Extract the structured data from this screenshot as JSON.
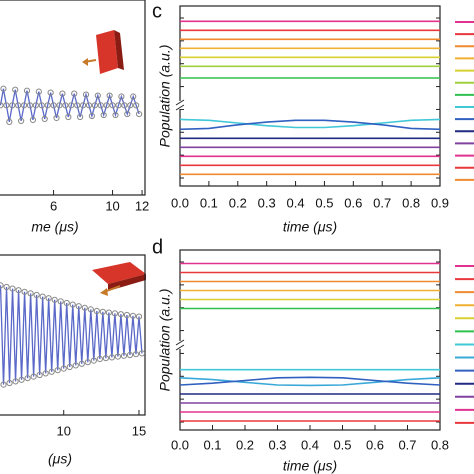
{
  "chart_data": [
    {
      "type": "scatter-line",
      "color": "#5a68c8",
      "marker_color": "#888888",
      "xlabel": "me (μs)",
      "xlim": [
        2.3,
        12.2
      ],
      "ylim": [
        -0.92,
        1.08
      ],
      "xticks": [
        6,
        10,
        12
      ],
      "x": [
        2.4,
        2.6,
        2.8,
        3.0,
        3.2,
        3.4,
        3.6,
        3.8,
        4.0,
        4.2,
        4.4,
        4.6,
        4.8,
        5.0,
        5.2,
        5.4,
        5.6,
        5.8,
        6.0,
        6.2,
        6.4,
        6.6,
        6.8,
        7.0,
        7.2,
        7.4,
        7.6,
        7.8,
        8.0,
        8.2,
        8.4,
        8.6,
        8.8,
        9.0,
        9.2,
        9.4,
        9.6,
        9.8,
        10.0,
        10.2,
        10.4,
        10.6,
        10.8,
        11.0,
        11.2,
        11.4,
        11.6,
        11.8
      ],
      "values": [
        0,
        0.17,
        0,
        -0.17,
        0,
        0.16,
        0,
        -0.16,
        0,
        0.15,
        0,
        -0.15,
        0,
        0.14,
        0,
        -0.14,
        0,
        0.13,
        0,
        -0.13,
        0,
        0.12,
        0,
        -0.12,
        0,
        0.12,
        0,
        -0.12,
        0,
        0.11,
        0,
        -0.11,
        0,
        0.1,
        0,
        -0.1,
        0,
        0.1,
        0,
        -0.1,
        0,
        0.09,
        0,
        -0.09,
        0,
        0.09,
        0,
        -0.09
      ]
    },
    {
      "type": "scatter-line",
      "color": "#5a68c8",
      "marker_color": "#888888",
      "xlabel": "(μs)",
      "xlim": [
        5.7,
        15.4
      ],
      "ylim": [
        -1,
        1
      ],
      "xticks": [
        10,
        15
      ],
      "x": [
        5.8,
        6.0,
        6.2,
        6.4,
        6.6,
        6.8,
        7.0,
        7.2,
        7.4,
        7.6,
        7.8,
        8.0,
        8.2,
        8.4,
        8.6,
        8.8,
        9.0,
        9.2,
        9.4,
        9.6,
        9.8,
        10.0,
        10.2,
        10.4,
        10.6,
        10.8,
        11.0,
        11.2,
        11.4,
        11.6,
        11.8,
        12.0,
        12.2,
        12.4,
        12.6,
        12.8,
        13.0,
        13.2,
        13.4,
        13.6,
        13.8,
        14.0,
        14.2,
        14.4,
        14.6,
        14.8,
        15.0,
        15.2
      ],
      "values": [
        0.62,
        -0.62,
        0.6,
        -0.6,
        0.58,
        -0.58,
        0.56,
        -0.56,
        0.54,
        -0.54,
        0.52,
        -0.52,
        0.5,
        -0.5,
        0.48,
        -0.48,
        0.46,
        -0.46,
        0.44,
        -0.44,
        0.42,
        -0.42,
        0.4,
        -0.4,
        0.38,
        -0.38,
        0.36,
        -0.36,
        0.34,
        -0.34,
        0.32,
        -0.32,
        0.3,
        -0.3,
        0.29,
        -0.29,
        0.28,
        -0.28,
        0.27,
        -0.27,
        0.26,
        -0.26,
        0.25,
        -0.25,
        0.24,
        -0.24,
        0.23,
        -0.23
      ]
    },
    {
      "type": "line",
      "panel_label": "c",
      "xlabel": "time (μs)",
      "ylabel": "Population (a.u.)",
      "xlim": [
        0,
        0.9
      ],
      "ylim": [
        0,
        20
      ],
      "xticks": [
        {
          "value": 0,
          "label": "0.0"
        },
        0.1,
        0.2,
        0.3,
        0.4,
        0.5,
        0.6,
        0.7,
        0.8,
        0.9
      ],
      "x": [
        0,
        0.1,
        0.2,
        0.3,
        0.4,
        0.5,
        0.6,
        0.7,
        0.8,
        0.9
      ],
      "series": [
        {
          "color": "#e0338f",
          "values": [
            18.3,
            18.3,
            18.3,
            18.3,
            18.3,
            18.3,
            18.3,
            18.3,
            18.3,
            18.3
          ]
        },
        {
          "color": "#e8383d",
          "values": [
            17.3,
            17.3,
            17.3,
            17.3,
            17.3,
            17.3,
            17.3,
            17.3,
            17.3,
            17.3
          ]
        },
        {
          "color": "#f08a2e",
          "values": [
            16.3,
            16.3,
            16.3,
            16.3,
            16.3,
            16.3,
            16.3,
            16.3,
            16.3,
            16.3
          ]
        },
        {
          "color": "#f0b030",
          "values": [
            15.3,
            15.3,
            15.3,
            15.3,
            15.3,
            15.3,
            15.3,
            15.3,
            15.3,
            15.3
          ]
        },
        {
          "color": "#d8d030",
          "values": [
            14.3,
            14.3,
            14.3,
            14.3,
            14.3,
            14.3,
            14.3,
            14.3,
            14.3,
            14.3
          ]
        },
        {
          "color": "#a0d040",
          "values": [
            13.3,
            13.3,
            13.3,
            13.3,
            13.3,
            13.3,
            13.3,
            13.3,
            13.3,
            13.3
          ]
        },
        {
          "color": "#30c050",
          "values": [
            12.0,
            12.0,
            12.0,
            12.0,
            12.0,
            12.0,
            12.0,
            12.0,
            12.0,
            12.0
          ]
        },
        {
          "color": "#40c8d8",
          "values": [
            7.4,
            7.3,
            7.0,
            6.7,
            6.5,
            6.5,
            6.7,
            7.0,
            7.3,
            7.4
          ]
        },
        {
          "color": "#3060c0",
          "values": [
            6.3,
            6.4,
            6.8,
            7.1,
            7.3,
            7.3,
            7.1,
            6.8,
            6.4,
            6.3
          ]
        },
        {
          "color": "#202a80",
          "values": [
            5.3,
            5.3,
            5.3,
            5.3,
            5.3,
            5.3,
            5.3,
            5.3,
            5.3,
            5.3
          ]
        },
        {
          "color": "#8040a0",
          "values": [
            4.3,
            4.3,
            4.3,
            4.3,
            4.3,
            4.3,
            4.3,
            4.3,
            4.3,
            4.3
          ]
        },
        {
          "color": "#e0338f",
          "values": [
            3.3,
            3.3,
            3.3,
            3.3,
            3.3,
            3.3,
            3.3,
            3.3,
            3.3,
            3.3
          ]
        },
        {
          "color": "#e8383d",
          "values": [
            2.3,
            2.3,
            2.3,
            2.3,
            2.3,
            2.3,
            2.3,
            2.3,
            2.3,
            2.3
          ]
        },
        {
          "color": "#f08a2e",
          "values": [
            1.3,
            1.3,
            1.3,
            1.3,
            1.3,
            1.3,
            1.3,
            1.3,
            1.3,
            1.3
          ]
        }
      ]
    },
    {
      "type": "line",
      "panel_label": "d",
      "xlabel": "time (μs)",
      "ylabel": "Population (a.u.)",
      "xlim": [
        0,
        0.8
      ],
      "ylim": [
        0,
        20
      ],
      "xticks": [
        {
          "value": 0,
          "label": "0.0"
        },
        0.1,
        0.2,
        0.3,
        0.4,
        0.5,
        0.6,
        0.7,
        0.8
      ],
      "x": [
        0,
        0.1,
        0.2,
        0.3,
        0.4,
        0.5,
        0.6,
        0.7,
        0.8
      ],
      "series": [
        {
          "color": "#e0338f",
          "values": [
            18.5,
            18.5,
            18.5,
            18.5,
            18.5,
            18.5,
            18.5,
            18.5,
            18.5
          ]
        },
        {
          "color": "#e8383d",
          "values": [
            17.5,
            17.5,
            17.5,
            17.5,
            17.5,
            17.5,
            17.5,
            17.5,
            17.5
          ]
        },
        {
          "color": "#f08a2e",
          "values": [
            16.5,
            16.5,
            16.5,
            16.5,
            16.5,
            16.5,
            16.5,
            16.5,
            16.5
          ]
        },
        {
          "color": "#f0b030",
          "values": [
            15.5,
            15.5,
            15.5,
            15.5,
            15.5,
            15.5,
            15.5,
            15.5,
            15.5
          ]
        },
        {
          "color": "#d8d030",
          "values": [
            14.5,
            14.5,
            14.5,
            14.5,
            14.5,
            14.5,
            14.5,
            14.5,
            14.5
          ]
        },
        {
          "color": "#30c050",
          "values": [
            13.5,
            13.5,
            13.5,
            13.5,
            13.5,
            13.5,
            13.5,
            13.5,
            13.5
          ]
        },
        {
          "color": "#40c8d8",
          "values": [
            6.7,
            6.7,
            6.7,
            6.7,
            6.7,
            6.7,
            6.7,
            6.7,
            6.7
          ]
        },
        {
          "color": "#3aa8d8",
          "values": [
            5.8,
            5.6,
            5.3,
            5.0,
            4.95,
            5.0,
            5.3,
            5.6,
            5.8
          ]
        },
        {
          "color": "#3060c0",
          "values": [
            5.0,
            5.2,
            5.5,
            5.8,
            5.85,
            5.8,
            5.5,
            5.2,
            5.0
          ]
        },
        {
          "color": "#202a80",
          "values": [
            4.0,
            4.0,
            4.0,
            4.0,
            4.0,
            4.0,
            4.0,
            4.0,
            4.0
          ]
        },
        {
          "color": "#8040a0",
          "values": [
            3.0,
            3.0,
            3.0,
            3.0,
            3.0,
            3.0,
            3.0,
            3.0,
            3.0
          ]
        },
        {
          "color": "#e0338f",
          "values": [
            2.0,
            2.0,
            2.0,
            2.0,
            2.0,
            2.0,
            2.0,
            2.0,
            2.0
          ]
        },
        {
          "color": "#e8383d",
          "values": [
            1.0,
            1.0,
            1.0,
            1.0,
            1.0,
            1.0,
            1.0,
            1.0,
            1.0
          ]
        }
      ]
    }
  ]
}
